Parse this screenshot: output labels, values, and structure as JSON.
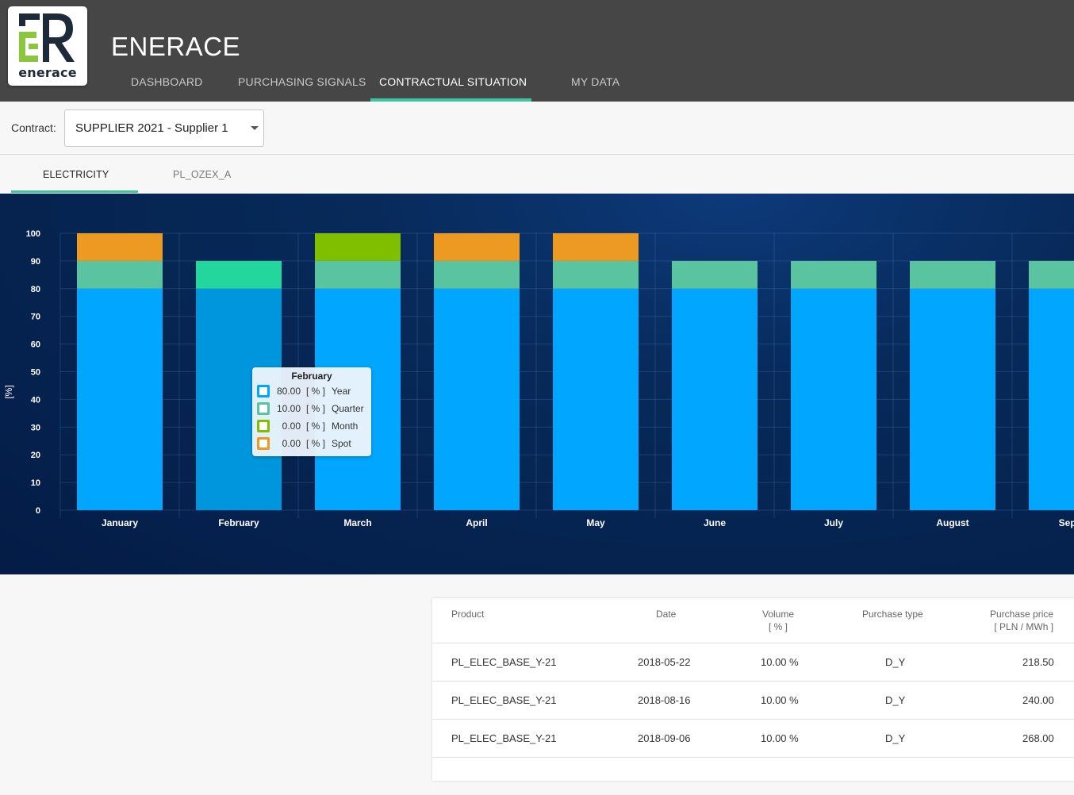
{
  "app": {
    "title": "ENERACE",
    "logo_text": "enerace"
  },
  "nav": {
    "items": [
      {
        "label": "DASHBOARD"
      },
      {
        "label": "PURCHASING SIGNALS"
      },
      {
        "label": "CONTRACTUAL SITUATION"
      },
      {
        "label": "MY DATA"
      }
    ],
    "active": "CONTRACTUAL SITUATION"
  },
  "contract": {
    "label": "Contract:",
    "selected": "SUPPLIER 2021 - Supplier 1"
  },
  "subtabs": {
    "items": [
      {
        "label": "ELECTRICITY"
      },
      {
        "label": "PL_OZEX_A"
      }
    ],
    "active": "ELECTRICITY"
  },
  "chart_data": {
    "type": "bar",
    "stacked": true,
    "ylabel": "[%]",
    "ylim": [
      0,
      100
    ],
    "yticks": [
      0,
      10,
      20,
      30,
      40,
      50,
      60,
      70,
      80,
      90,
      100
    ],
    "categories": [
      "January",
      "February",
      "March",
      "April",
      "May",
      "June",
      "July",
      "August",
      "Septe"
    ],
    "series": [
      {
        "name": "Year",
        "color": "#00a6ff",
        "values": [
          80,
          80,
          80,
          80,
          80,
          80,
          80,
          80,
          80
        ]
      },
      {
        "name": "Quarter",
        "color": "#5ac4a0",
        "values": [
          10,
          10,
          10,
          10,
          10,
          10,
          10,
          10,
          10
        ]
      },
      {
        "name": "Month",
        "color": "#7fbf00",
        "values": [
          0,
          0,
          10,
          0,
          0,
          0,
          0,
          0,
          0
        ]
      },
      {
        "name": "Spot",
        "color": "#ec9a22",
        "values": [
          10,
          0,
          0,
          10,
          10,
          0,
          0,
          0,
          0
        ]
      }
    ],
    "highlighted": "February",
    "grid": true
  },
  "tooltip": {
    "title": "February",
    "rows": [
      {
        "value": "80.00",
        "unit": "[ % ]",
        "name": "Year",
        "color": "#00a6ff"
      },
      {
        "value": "10.00",
        "unit": "[ % ]",
        "name": "Quarter",
        "color": "#5ac4a0"
      },
      {
        "value": "0.00",
        "unit": "[ % ]",
        "name": "Month",
        "color": "#7fbf00"
      },
      {
        "value": "0.00",
        "unit": "[ % ]",
        "name": "Spot",
        "color": "#ec9a22"
      }
    ]
  },
  "table": {
    "headers": [
      {
        "label": "Product",
        "sub": ""
      },
      {
        "label": "Date",
        "sub": ""
      },
      {
        "label": "Volume",
        "sub": "[ % ]"
      },
      {
        "label": "Purchase type",
        "sub": ""
      },
      {
        "label": "Purchase price",
        "sub": "[ PLN / MWh ]"
      }
    ],
    "rows": [
      {
        "product": "PL_ELEC_BASE_Y-21",
        "date": "2018-05-22",
        "volume": "10.00 %",
        "type": "D_Y",
        "price": "218.50"
      },
      {
        "product": "PL_ELEC_BASE_Y-21",
        "date": "2018-08-16",
        "volume": "10.00 %",
        "type": "D_Y",
        "price": "240.00"
      },
      {
        "product": "PL_ELEC_BASE_Y-21",
        "date": "2018-09-06",
        "volume": "10.00 %",
        "type": "D_Y",
        "price": "268.00"
      }
    ]
  }
}
